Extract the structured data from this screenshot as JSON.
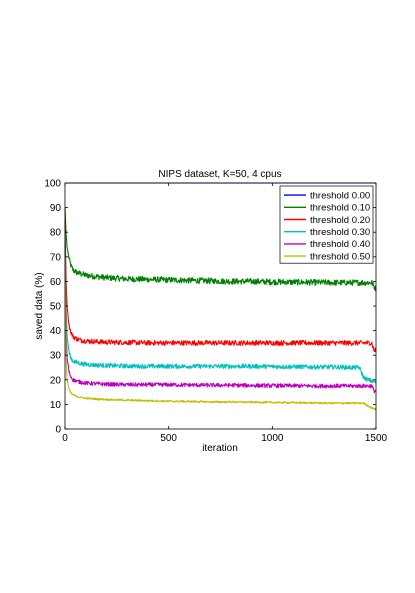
{
  "chart_data": {
    "type": "line",
    "title": "NIPS dataset, K=50, 4 cpus",
    "xlabel": "iteration",
    "ylabel": "saved data (%)",
    "xlim": [
      0,
      1500
    ],
    "ylim": [
      0,
      100
    ],
    "xticks": [
      "0",
      "500",
      "1000",
      "1500"
    ],
    "yticks": [
      "0",
      "10",
      "20",
      "30",
      "40",
      "50",
      "60",
      "70",
      "80",
      "90",
      "100"
    ],
    "grid": false,
    "legend_position": "top-right",
    "series": [
      {
        "name": "threshold 0.00",
        "color": "#0000ff",
        "x": [
          0,
          1500
        ],
        "y": [
          100,
          100
        ],
        "noise": 0
      },
      {
        "name": "threshold 0.10",
        "color": "#008000",
        "x": [
          0,
          5,
          10,
          20,
          30,
          40,
          60,
          80,
          100,
          150,
          200,
          300,
          400,
          500,
          600,
          700,
          800,
          900,
          1000,
          1100,
          1200,
          1300,
          1400,
          1450,
          1480,
          1490,
          1500
        ],
        "y": [
          90,
          80,
          74,
          69,
          66,
          64.5,
          63.5,
          63,
          62.5,
          62,
          61.5,
          61,
          60.8,
          60.6,
          60.4,
          60.2,
          60,
          60,
          59.8,
          59.7,
          59.6,
          59.5,
          59.5,
          59.5,
          59.5,
          58,
          57
        ],
        "noise": 1.2
      },
      {
        "name": "threshold 0.20",
        "color": "#ff0000",
        "x": [
          0,
          5,
          10,
          20,
          30,
          40,
          60,
          80,
          100,
          150,
          200,
          300,
          400,
          500,
          600,
          700,
          800,
          900,
          1000,
          1100,
          1200,
          1300,
          1400,
          1480,
          1490,
          1500
        ],
        "y": [
          85,
          62,
          50,
          42,
          39,
          37.5,
          36.5,
          36,
          35.8,
          35.5,
          35.3,
          35.2,
          35,
          35,
          35,
          35,
          35,
          35,
          35,
          35,
          35,
          35,
          35,
          35,
          32,
          32
        ],
        "noise": 1.0
      },
      {
        "name": "threshold 0.30",
        "color": "#00c0c0",
        "x": [
          0,
          5,
          10,
          20,
          30,
          40,
          60,
          80,
          100,
          150,
          200,
          300,
          400,
          500,
          600,
          700,
          800,
          900,
          1000,
          1100,
          1200,
          1300,
          1400,
          1420,
          1440,
          1460,
          1480,
          1500
        ],
        "y": [
          80,
          50,
          38,
          31,
          28.5,
          27.5,
          27,
          26.5,
          26.3,
          26,
          25.8,
          25.6,
          25.5,
          25.5,
          25.5,
          25.5,
          25.5,
          25.5,
          25.4,
          25.3,
          25.2,
          25.2,
          25,
          25,
          21,
          20,
          19.5,
          19
        ],
        "noise": 0.9
      },
      {
        "name": "threshold 0.40",
        "color": "#bf00bf",
        "x": [
          0,
          5,
          10,
          20,
          30,
          40,
          60,
          80,
          100,
          150,
          200,
          300,
          400,
          500,
          600,
          700,
          800,
          900,
          1000,
          1100,
          1200,
          1300,
          1400,
          1480,
          1490,
          1500
        ],
        "y": [
          75,
          40,
          29,
          23,
          21,
          20,
          19.3,
          19,
          18.7,
          18.4,
          18.2,
          18,
          18,
          18,
          17.9,
          17.8,
          17.8,
          17.7,
          17.6,
          17.6,
          17.5,
          17.5,
          17.5,
          17.5,
          15.5,
          15.5
        ],
        "noise": 0.8
      },
      {
        "name": "threshold 0.50",
        "color": "#bfbf00",
        "x": [
          0,
          5,
          10,
          20,
          30,
          40,
          60,
          80,
          100,
          150,
          200,
          300,
          400,
          500,
          600,
          700,
          800,
          900,
          1000,
          1100,
          1200,
          1300,
          1400,
          1440,
          1460,
          1480,
          1500
        ],
        "y": [
          70,
          30,
          20,
          16,
          14.5,
          13.8,
          13.2,
          12.8,
          12.5,
          12.2,
          12,
          11.7,
          11.5,
          11.3,
          11.2,
          11,
          11,
          10.9,
          10.8,
          10.7,
          10.6,
          10.5,
          10.5,
          10.5,
          9.5,
          8.5,
          8
        ],
        "noise": 0.35
      }
    ]
  }
}
